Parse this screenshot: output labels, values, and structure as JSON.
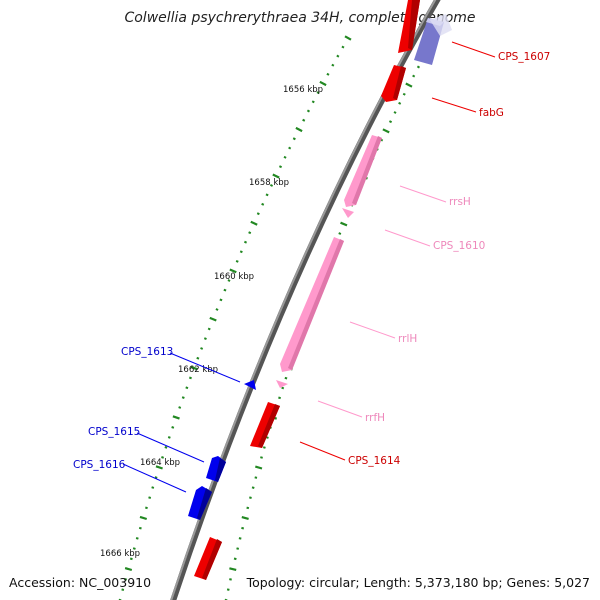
{
  "title": "Colwellia psychrerythraea 34H, complete genome",
  "accession": "Accession: NC_003910",
  "summary": "Topology: circular; Length: 5,373,180 bp; Genes: 5,027",
  "kbp_labels": [
    "1656 kbp",
    "1658 kbp",
    "1660 kbp",
    "1662 kbp",
    "1664 kbp",
    "1666 kbp"
  ],
  "gene_labels": [
    "CPS_1607",
    "fabG",
    "rrsH",
    "CPS_1610",
    "rrlH",
    "CPS_1613",
    "rrfH",
    "CPS_1614",
    "CPS_1615",
    "CPS_1616"
  ],
  "colors": {
    "backbone": "#888888",
    "cds_forward": "#ee0000",
    "cds_reverse": "#0000ee",
    "rrna": "#ff99cc",
    "highlight": "#8888dd",
    "ticks": "#228822"
  }
}
